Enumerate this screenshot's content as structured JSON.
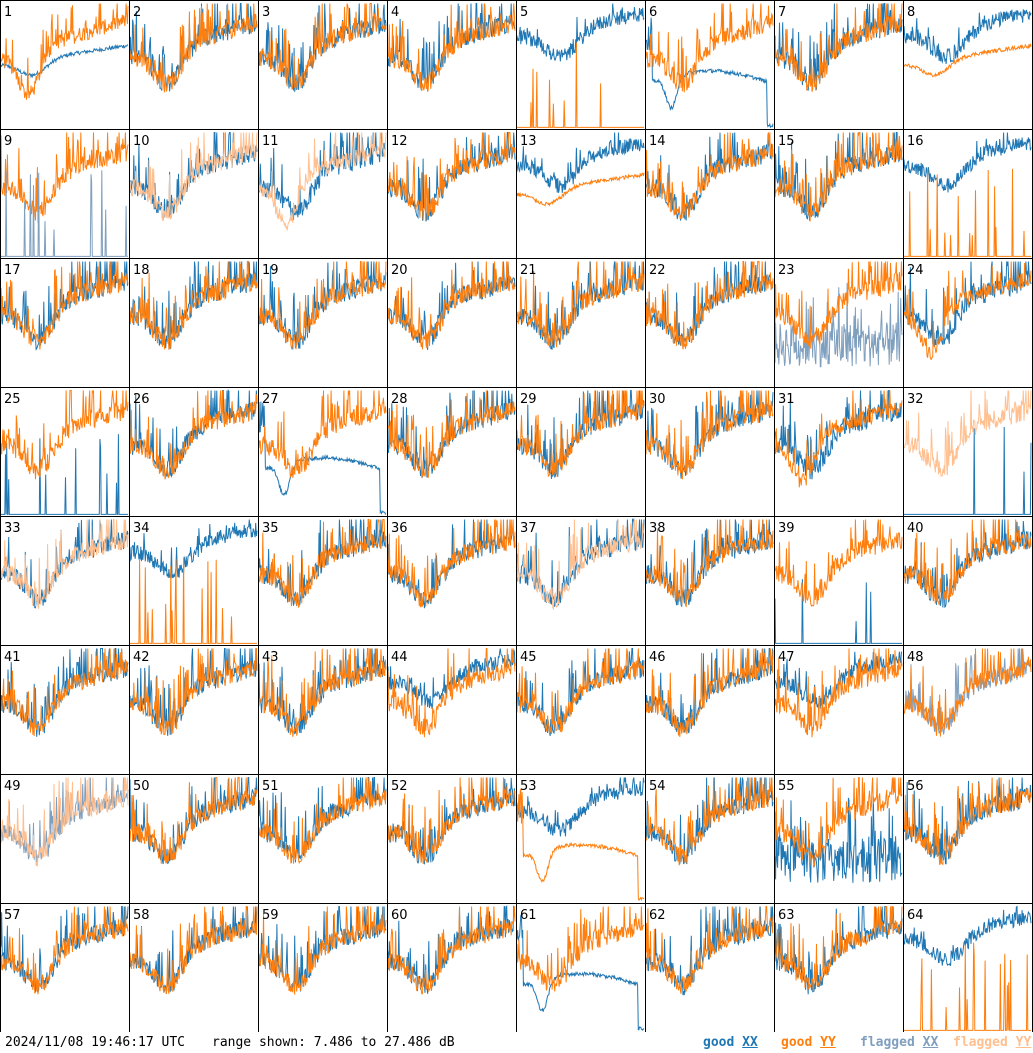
{
  "chart_data": {
    "type": "line",
    "layout": "small-multiples-8x8",
    "units": "dB",
    "ylim": [
      7.486,
      27.486
    ],
    "timestamp": "2024/11/08 19:46:17 UTC",
    "range_text": "range shown: 7.486 to 27.486 dB",
    "legend": [
      {
        "prefix": "good",
        "pol": "XX",
        "color": "#1f77b4"
      },
      {
        "prefix": "good",
        "pol": "YY",
        "color": "#ff7f0e"
      },
      {
        "prefix": "flagged",
        "pol": "XX",
        "color": "#7f9fbf"
      },
      {
        "prefix": "flagged",
        "pol": "YY",
        "color": "#ffbf8f"
      }
    ],
    "panels": [
      {
        "id": "1",
        "xx_flag": false,
        "yy_flag": false,
        "xx_shape": "smooth",
        "yy_shape": "deep",
        "yy_over": true
      },
      {
        "id": "2",
        "xx_flag": false,
        "yy_flag": false,
        "xx_shape": "normal",
        "yy_shape": "normal",
        "yy_over": true
      },
      {
        "id": "3",
        "xx_flag": false,
        "yy_flag": false,
        "xx_shape": "normal",
        "yy_shape": "normal",
        "yy_over": true
      },
      {
        "id": "4",
        "xx_flag": false,
        "yy_flag": false,
        "xx_shape": "normal",
        "yy_shape": "normal",
        "yy_over": true
      },
      {
        "id": "5",
        "xx_flag": false,
        "yy_flag": false,
        "xx_shape": "high",
        "yy_shape": "spikes",
        "yy_over": true
      },
      {
        "id": "6",
        "xx_flag": false,
        "yy_flag": false,
        "xx_shape": "dropout",
        "yy_shape": "normal",
        "yy_over": true
      },
      {
        "id": "7",
        "xx_flag": false,
        "yy_flag": false,
        "xx_shape": "normal",
        "yy_shape": "normal",
        "yy_over": true
      },
      {
        "id": "8",
        "xx_flag": false,
        "yy_flag": false,
        "xx_shape": "high",
        "yy_shape": "smooth",
        "yy_over": true
      },
      {
        "id": "9",
        "xx_flag": true,
        "yy_flag": false,
        "xx_shape": "spikes",
        "yy_shape": "normal",
        "yy_over": false
      },
      {
        "id": "10",
        "xx_flag": false,
        "yy_flag": true,
        "xx_shape": "normal",
        "yy_shape": "normal",
        "yy_over": true
      },
      {
        "id": "11",
        "xx_flag": false,
        "yy_flag": true,
        "xx_shape": "normal",
        "yy_shape": "deep",
        "yy_over": true
      },
      {
        "id": "12",
        "xx_flag": false,
        "yy_flag": false,
        "xx_shape": "normal",
        "yy_shape": "normal",
        "yy_over": true
      },
      {
        "id": "13",
        "xx_flag": false,
        "yy_flag": false,
        "xx_shape": "high",
        "yy_shape": "smooth",
        "yy_over": true
      },
      {
        "id": "14",
        "xx_flag": false,
        "yy_flag": false,
        "xx_shape": "normal",
        "yy_shape": "normal",
        "yy_over": true
      },
      {
        "id": "15",
        "xx_flag": false,
        "yy_flag": false,
        "xx_shape": "normal",
        "yy_shape": "normal",
        "yy_over": true
      },
      {
        "id": "16",
        "xx_flag": false,
        "yy_flag": false,
        "xx_shape": "high",
        "yy_shape": "spikes",
        "yy_over": true
      },
      {
        "id": "17",
        "xx_flag": false,
        "yy_flag": false,
        "xx_shape": "normal",
        "yy_shape": "normal",
        "yy_over": true
      },
      {
        "id": "18",
        "xx_flag": false,
        "yy_flag": false,
        "xx_shape": "normal",
        "yy_shape": "normal",
        "yy_over": true
      },
      {
        "id": "19",
        "xx_flag": false,
        "yy_flag": false,
        "xx_shape": "normal",
        "yy_shape": "normal",
        "yy_over": true
      },
      {
        "id": "20",
        "xx_flag": false,
        "yy_flag": false,
        "xx_shape": "normal",
        "yy_shape": "normal",
        "yy_over": true
      },
      {
        "id": "21",
        "xx_flag": false,
        "yy_flag": false,
        "xx_shape": "normal",
        "yy_shape": "normal",
        "yy_over": true
      },
      {
        "id": "22",
        "xx_flag": false,
        "yy_flag": false,
        "xx_shape": "normal",
        "yy_shape": "normal",
        "yy_over": true
      },
      {
        "id": "23",
        "xx_flag": true,
        "yy_flag": false,
        "xx_shape": "low",
        "yy_shape": "normal",
        "yy_over": true
      },
      {
        "id": "24",
        "xx_flag": false,
        "yy_flag": false,
        "xx_shape": "normal",
        "yy_shape": "deep",
        "yy_over": true
      },
      {
        "id": "25",
        "xx_flag": false,
        "yy_flag": false,
        "xx_shape": "spikes",
        "yy_shape": "normal",
        "yy_over": true
      },
      {
        "id": "26",
        "xx_flag": false,
        "yy_flag": false,
        "xx_shape": "normal",
        "yy_shape": "normal",
        "yy_over": true
      },
      {
        "id": "27",
        "xx_flag": false,
        "yy_flag": false,
        "xx_shape": "dropout",
        "yy_shape": "normal",
        "yy_over": true
      },
      {
        "id": "28",
        "xx_flag": false,
        "yy_flag": false,
        "xx_shape": "normal",
        "yy_shape": "normal",
        "yy_over": true
      },
      {
        "id": "29",
        "xx_flag": false,
        "yy_flag": false,
        "xx_shape": "normal",
        "yy_shape": "normal",
        "yy_over": true
      },
      {
        "id": "30",
        "xx_flag": false,
        "yy_flag": false,
        "xx_shape": "normal",
        "yy_shape": "normal",
        "yy_over": true
      },
      {
        "id": "31",
        "xx_flag": false,
        "yy_flag": false,
        "xx_shape": "normal",
        "yy_shape": "deep",
        "yy_over": true
      },
      {
        "id": "32",
        "xx_flag": false,
        "yy_flag": true,
        "xx_shape": "spikes",
        "yy_shape": "normal",
        "yy_over": true
      },
      {
        "id": "33",
        "xx_flag": false,
        "yy_flag": true,
        "xx_shape": "normal",
        "yy_shape": "normal",
        "yy_over": true
      },
      {
        "id": "34",
        "xx_flag": false,
        "yy_flag": false,
        "xx_shape": "high",
        "yy_shape": "spikes",
        "yy_over": true
      },
      {
        "id": "35",
        "xx_flag": false,
        "yy_flag": false,
        "xx_shape": "normal",
        "yy_shape": "normal",
        "yy_over": true
      },
      {
        "id": "36",
        "xx_flag": false,
        "yy_flag": false,
        "xx_shape": "normal",
        "yy_shape": "normal",
        "yy_over": true
      },
      {
        "id": "37",
        "xx_flag": false,
        "yy_flag": true,
        "xx_shape": "normal",
        "yy_shape": "normal",
        "yy_over": true
      },
      {
        "id": "38",
        "xx_flag": false,
        "yy_flag": false,
        "xx_shape": "normal",
        "yy_shape": "normal",
        "yy_over": true
      },
      {
        "id": "39",
        "xx_flag": false,
        "yy_flag": false,
        "xx_shape": "spikes",
        "yy_shape": "normal",
        "yy_over": true
      },
      {
        "id": "40",
        "xx_flag": false,
        "yy_flag": false,
        "xx_shape": "normal",
        "yy_shape": "normal",
        "yy_over": true
      },
      {
        "id": "41",
        "xx_flag": false,
        "yy_flag": false,
        "xx_shape": "normal",
        "yy_shape": "normal",
        "yy_over": true
      },
      {
        "id": "42",
        "xx_flag": false,
        "yy_flag": false,
        "xx_shape": "normal",
        "yy_shape": "normal",
        "yy_over": true
      },
      {
        "id": "43",
        "xx_flag": false,
        "yy_flag": false,
        "xx_shape": "normal",
        "yy_shape": "normal",
        "yy_over": true
      },
      {
        "id": "44",
        "xx_flag": false,
        "yy_flag": false,
        "xx_shape": "high",
        "yy_shape": "normal",
        "yy_over": true
      },
      {
        "id": "45",
        "xx_flag": false,
        "yy_flag": false,
        "xx_shape": "normal",
        "yy_shape": "normal",
        "yy_over": true
      },
      {
        "id": "46",
        "xx_flag": false,
        "yy_flag": false,
        "xx_shape": "normal",
        "yy_shape": "normal",
        "yy_over": true
      },
      {
        "id": "47",
        "xx_flag": false,
        "yy_flag": false,
        "xx_shape": "high",
        "yy_shape": "normal",
        "yy_over": true
      },
      {
        "id": "48",
        "xx_flag": true,
        "yy_flag": false,
        "xx_shape": "normal",
        "yy_shape": "normal",
        "yy_over": true
      },
      {
        "id": "49",
        "xx_flag": true,
        "yy_flag": true,
        "xx_shape": "normal",
        "yy_shape": "normal",
        "yy_over": true
      },
      {
        "id": "50",
        "xx_flag": false,
        "yy_flag": false,
        "xx_shape": "normal",
        "yy_shape": "normal",
        "yy_over": true
      },
      {
        "id": "51",
        "xx_flag": false,
        "yy_flag": false,
        "xx_shape": "normal",
        "yy_shape": "normal",
        "yy_over": true
      },
      {
        "id": "52",
        "xx_flag": false,
        "yy_flag": false,
        "xx_shape": "normal",
        "yy_shape": "normal",
        "yy_over": true
      },
      {
        "id": "53",
        "xx_flag": false,
        "yy_flag": false,
        "xx_shape": "high",
        "yy_shape": "dropout",
        "yy_over": true
      },
      {
        "id": "54",
        "xx_flag": false,
        "yy_flag": false,
        "xx_shape": "normal",
        "yy_shape": "normal",
        "yy_over": true
      },
      {
        "id": "55",
        "xx_flag": false,
        "yy_flag": false,
        "xx_shape": "low",
        "yy_shape": "normal",
        "yy_over": true
      },
      {
        "id": "56",
        "xx_flag": false,
        "yy_flag": false,
        "xx_shape": "normal",
        "yy_shape": "normal",
        "yy_over": true
      },
      {
        "id": "57",
        "xx_flag": false,
        "yy_flag": false,
        "xx_shape": "normal",
        "yy_shape": "normal",
        "yy_over": true
      },
      {
        "id": "58",
        "xx_flag": false,
        "yy_flag": false,
        "xx_shape": "normal",
        "yy_shape": "normal",
        "yy_over": true
      },
      {
        "id": "59",
        "xx_flag": false,
        "yy_flag": false,
        "xx_shape": "normal",
        "yy_shape": "normal",
        "yy_over": true
      },
      {
        "id": "60",
        "xx_flag": false,
        "yy_flag": false,
        "xx_shape": "normal",
        "yy_shape": "normal",
        "yy_over": true
      },
      {
        "id": "61",
        "xx_flag": false,
        "yy_flag": false,
        "xx_shape": "dropout",
        "yy_shape": "normal",
        "yy_over": true
      },
      {
        "id": "62",
        "xx_flag": false,
        "yy_flag": false,
        "xx_shape": "normal",
        "yy_shape": "normal",
        "yy_over": true
      },
      {
        "id": "63",
        "xx_flag": false,
        "yy_flag": false,
        "xx_shape": "normal",
        "yy_shape": "normal",
        "yy_over": true
      },
      {
        "id": "64",
        "xx_flag": false,
        "yy_flag": false,
        "xx_shape": "high",
        "yy_shape": "spikes",
        "yy_over": true
      }
    ]
  }
}
